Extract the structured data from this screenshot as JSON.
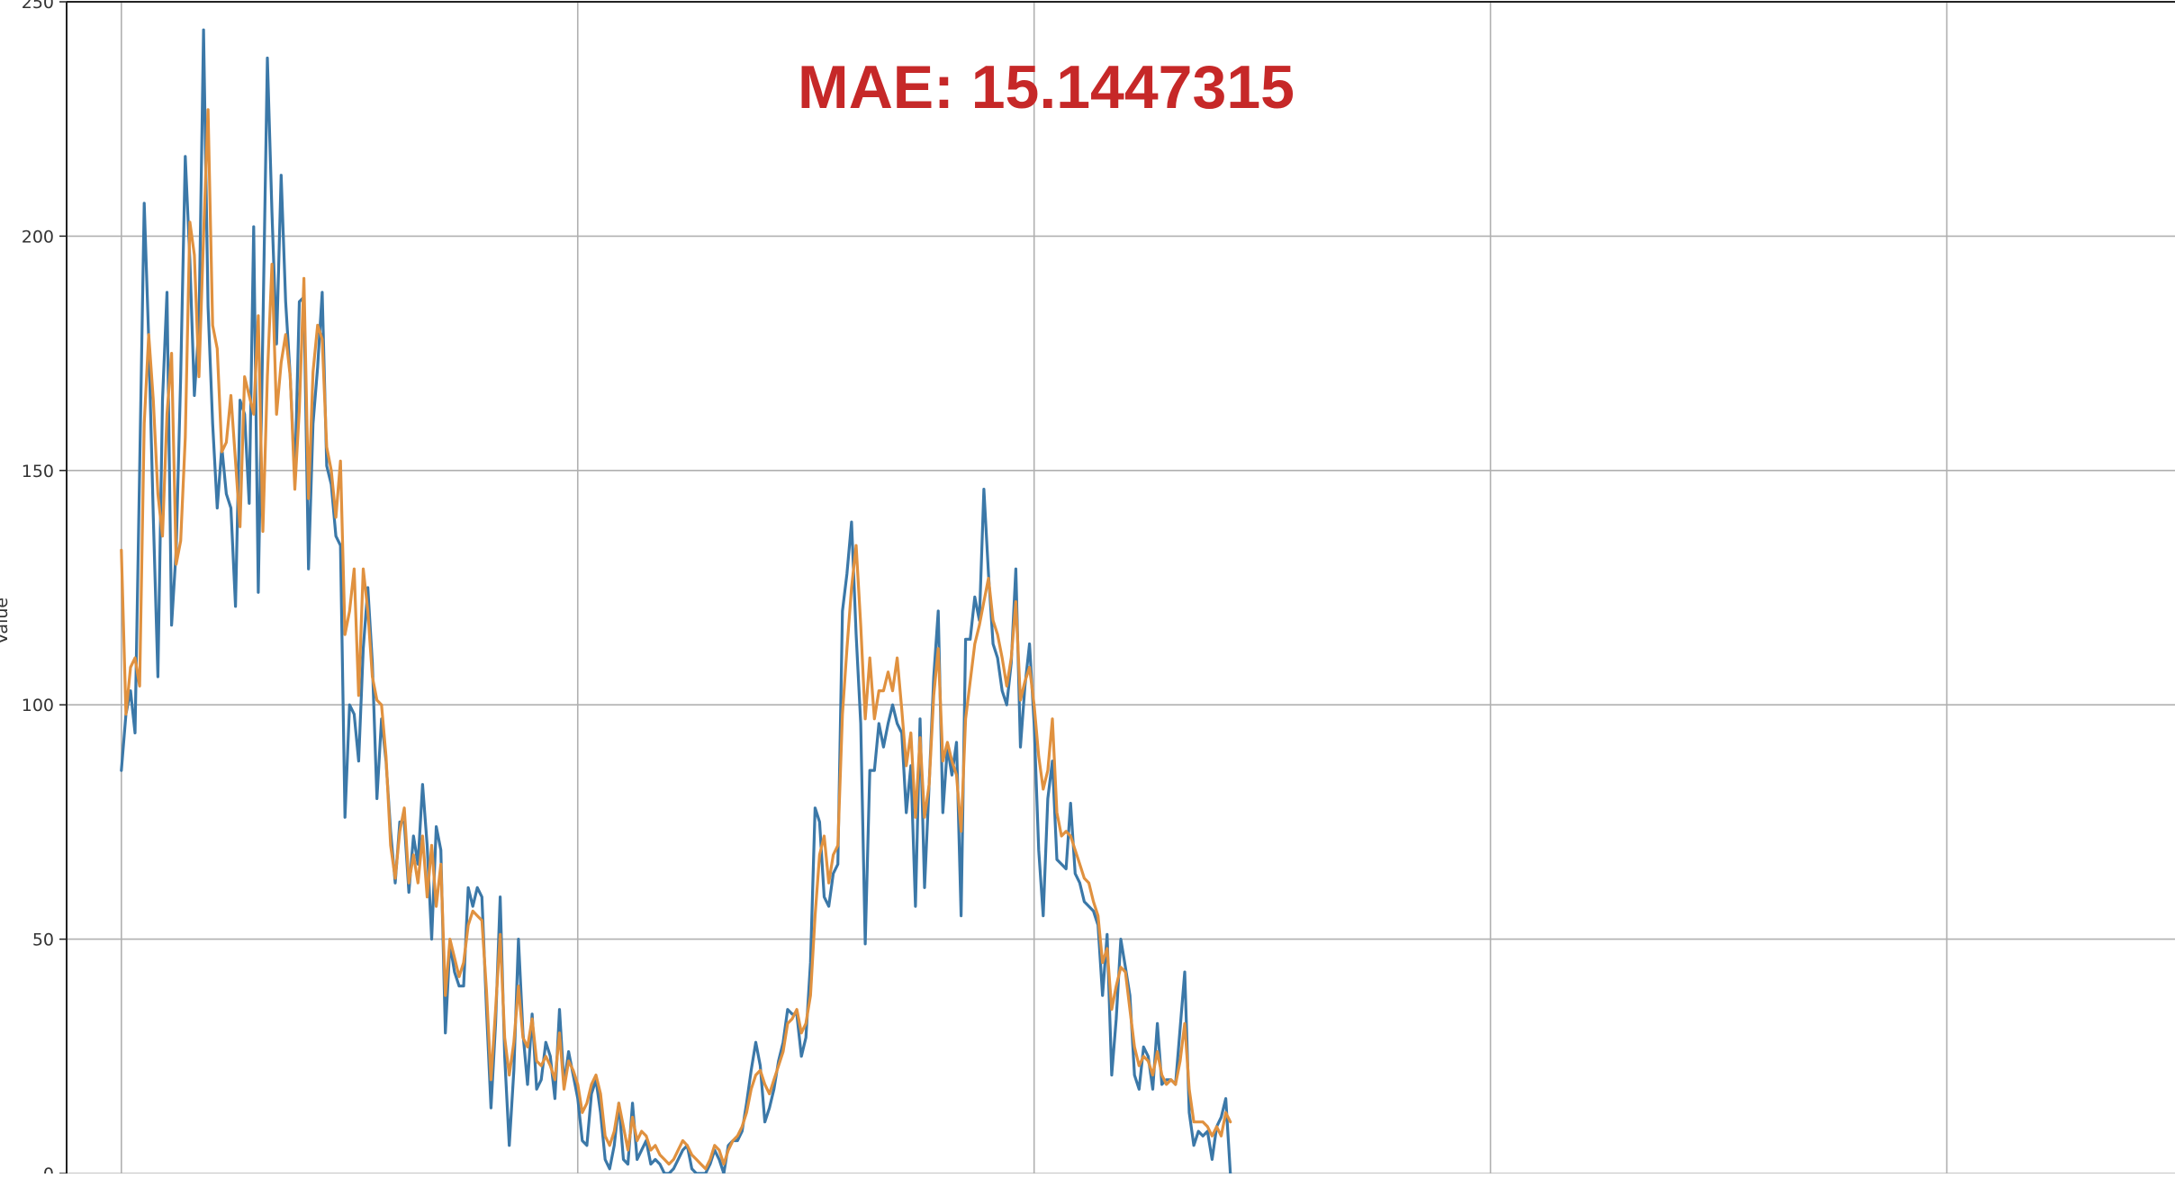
{
  "chart_data": {
    "type": "line",
    "title": "",
    "xlabel": "",
    "ylabel": "Value",
    "ylim": [
      0,
      250
    ],
    "xlim": [
      -12,
      450
    ],
    "yticks": [
      0,
      50,
      100,
      150,
      200,
      250
    ],
    "xgrid": [
      0,
      100,
      200,
      300,
      400
    ],
    "grid": true,
    "legend": "none",
    "annotation": {
      "text": "MAE: 15.1447315",
      "color": "#c62828"
    },
    "colors": {
      "actual": "#3b78a8",
      "predicted": "#e0913f",
      "grid": "#b0b0b0",
      "axis": "#222222"
    },
    "series": [
      {
        "key": "actual",
        "values": [
          86,
          98,
          103,
          94,
          150,
          207,
          178,
          140,
          106,
          165,
          188,
          117,
          133,
          170,
          217,
          195,
          166,
          181,
          244,
          185,
          160,
          142,
          155,
          145,
          142,
          121,
          165,
          162,
          143,
          202,
          124,
          180,
          238,
          205,
          177,
          213,
          186,
          170,
          148,
          186,
          187,
          129,
          160,
          172,
          188,
          151,
          147,
          136,
          134,
          76,
          100,
          98,
          88,
          112,
          125,
          109,
          80,
          97,
          88,
          73,
          62,
          75,
          75,
          60,
          72,
          66,
          83,
          70,
          50,
          74,
          69,
          30,
          49,
          43,
          40,
          40,
          61,
          57,
          61,
          59,
          35,
          14,
          32,
          59,
          25,
          6,
          22,
          50,
          30,
          19,
          34,
          18,
          20,
          28,
          25,
          16,
          35,
          19,
          26,
          21,
          16,
          7,
          6,
          17,
          20,
          13,
          3,
          1,
          6,
          15,
          3,
          2,
          15,
          3,
          5,
          7,
          2,
          3,
          2,
          0,
          0,
          1,
          3,
          5,
          6,
          1,
          0,
          0,
          0,
          2,
          5,
          3,
          0,
          6,
          7,
          7,
          9,
          15,
          22,
          28,
          23,
          11,
          14,
          18,
          24,
          28,
          35,
          34,
          34,
          25,
          29,
          45,
          78,
          75,
          59,
          57,
          64,
          66,
          120,
          128,
          139,
          115,
          96,
          49,
          86,
          86,
          96,
          91,
          96,
          100,
          96,
          94,
          77,
          87,
          57,
          97,
          61,
          83,
          106,
          120,
          77,
          91,
          85,
          92,
          55,
          114,
          114,
          123,
          118,
          146,
          128,
          113,
          110,
          103,
          100,
          109,
          129,
          91,
          104,
          113,
          96,
          69,
          55,
          80,
          88,
          67,
          66,
          65,
          79,
          64,
          62,
          58,
          57,
          56,
          53,
          38,
          51,
          21,
          33,
          50,
          44,
          38,
          21,
          18,
          27,
          25,
          18,
          32,
          19,
          20,
          20,
          19,
          31,
          43,
          13,
          6,
          9,
          8,
          9,
          3,
          10,
          12,
          16,
          0
        ]
      },
      {
        "key": "predicted",
        "values": [
          133,
          98,
          108,
          110,
          104,
          160,
          179,
          165,
          145,
          136,
          162,
          175,
          130,
          135,
          157,
          203,
          196,
          170,
          200,
          227,
          181,
          176,
          154,
          156,
          166,
          152,
          138,
          170,
          166,
          162,
          183,
          137,
          170,
          194,
          162,
          173,
          179,
          170,
          146,
          163,
          191,
          144,
          171,
          181,
          178,
          155,
          150,
          140,
          152,
          115,
          120,
          129,
          102,
          129,
          120,
          106,
          101,
          100,
          89,
          70,
          63,
          73,
          78,
          62,
          68,
          62,
          72,
          59,
          70,
          57,
          66,
          38,
          50,
          46,
          42,
          45,
          53,
          56,
          55,
          54,
          39,
          20,
          35,
          51,
          29,
          21,
          28,
          40,
          29,
          27,
          33,
          24,
          23,
          25,
          23,
          20,
          30,
          18,
          24,
          22,
          19,
          13,
          15,
          19,
          21,
          17,
          8,
          6,
          9,
          15,
          10,
          5,
          12,
          7,
          9,
          8,
          5,
          6,
          4,
          3,
          2,
          3,
          5,
          7,
          6,
          4,
          3,
          2,
          1,
          3,
          6,
          5,
          2,
          5,
          7,
          8,
          10,
          13,
          18,
          21,
          22,
          19,
          17,
          20,
          23,
          26,
          32,
          33,
          35,
          30,
          32,
          38,
          55,
          68,
          72,
          62,
          68,
          70,
          98,
          112,
          125,
          134,
          117,
          97,
          110,
          97,
          103,
          103,
          107,
          103,
          110,
          99,
          87,
          94,
          76,
          93,
          76,
          83,
          102,
          112,
          88,
          92,
          88,
          85,
          73,
          97,
          105,
          113,
          117,
          122,
          127,
          118,
          115,
          110,
          104,
          110,
          122,
          101,
          105,
          108,
          100,
          89,
          82,
          86,
          97,
          77,
          72,
          73,
          72,
          69,
          66,
          63,
          62,
          58,
          55,
          45,
          48,
          35,
          40,
          44,
          43,
          35,
          27,
          23,
          25,
          24,
          21,
          26,
          21,
          19,
          20,
          19,
          24,
          32,
          18,
          11,
          11,
          11,
          10,
          8,
          10,
          8,
          13,
          11
        ]
      }
    ]
  }
}
